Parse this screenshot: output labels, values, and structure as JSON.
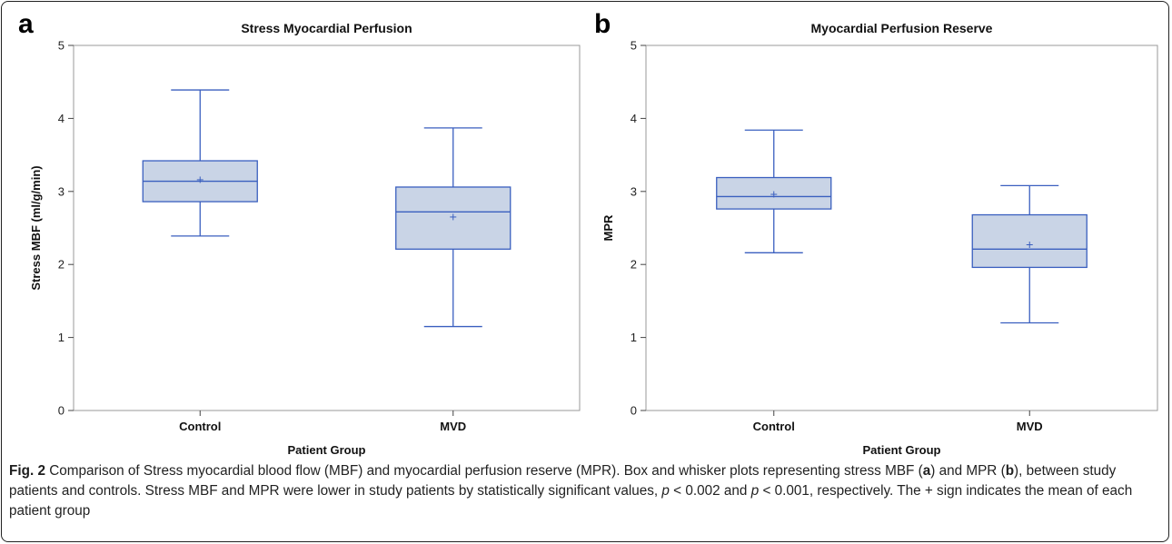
{
  "figure": {
    "caption_label": "Fig. 2",
    "caption_segments": [
      {
        "t": " Comparison of Stress myocardial blood flow (MBF) and myocardial perfusion reserve (MPR). Box and whisker plots representing stress MBF ("
      },
      {
        "t": "a",
        "b": true
      },
      {
        "t": ") and MPR ("
      },
      {
        "t": "b",
        "b": true
      },
      {
        "t": "), between study patients and controls. Stress MBF and MPR were lower in study patients by statistically significant values, "
      },
      {
        "t": "p",
        "i": true
      },
      {
        "t": " < 0.002 and "
      },
      {
        "t": "p",
        "i": true
      },
      {
        "t": " < 0.001, respectively. The + sign indicates the mean of each patient group"
      }
    ]
  },
  "chart_data": [
    {
      "type": "box",
      "panel_label": "a",
      "title": "Stress Myocardial Perfusion",
      "xlabel": "Patient Group",
      "ylabel": "Stress MBF (ml/g/min)",
      "ylim": [
        0,
        5
      ],
      "yticks": [
        "0",
        "1",
        "2",
        "3",
        "4",
        "5"
      ],
      "categories": [
        "Control",
        "MVD"
      ],
      "boxes": [
        {
          "min": 2.39,
          "q1": 2.86,
          "median": 3.14,
          "q3": 3.42,
          "max": 4.39,
          "mean": 3.16
        },
        {
          "min": 1.15,
          "q1": 2.21,
          "median": 2.72,
          "q3": 3.06,
          "max": 3.87,
          "mean": 2.65
        }
      ],
      "grid": false,
      "colors": {
        "line": "#3a5fbf",
        "fill": "#c9d4e6"
      }
    },
    {
      "type": "box",
      "panel_label": "b",
      "title": "Myocardial Perfusion Reserve",
      "xlabel": "Patient Group",
      "ylabel": "MPR",
      "ylim": [
        0,
        5
      ],
      "yticks": [
        "0",
        "1",
        "2",
        "3",
        "4",
        "5"
      ],
      "categories": [
        "Control",
        "MVD"
      ],
      "boxes": [
        {
          "min": 2.16,
          "q1": 2.76,
          "median": 2.93,
          "q3": 3.19,
          "max": 3.84,
          "mean": 2.96
        },
        {
          "min": 1.2,
          "q1": 1.96,
          "median": 2.21,
          "q3": 2.68,
          "max": 3.08,
          "mean": 2.27
        }
      ],
      "grid": false,
      "colors": {
        "line": "#3a5fbf",
        "fill": "#c9d4e6"
      }
    }
  ]
}
